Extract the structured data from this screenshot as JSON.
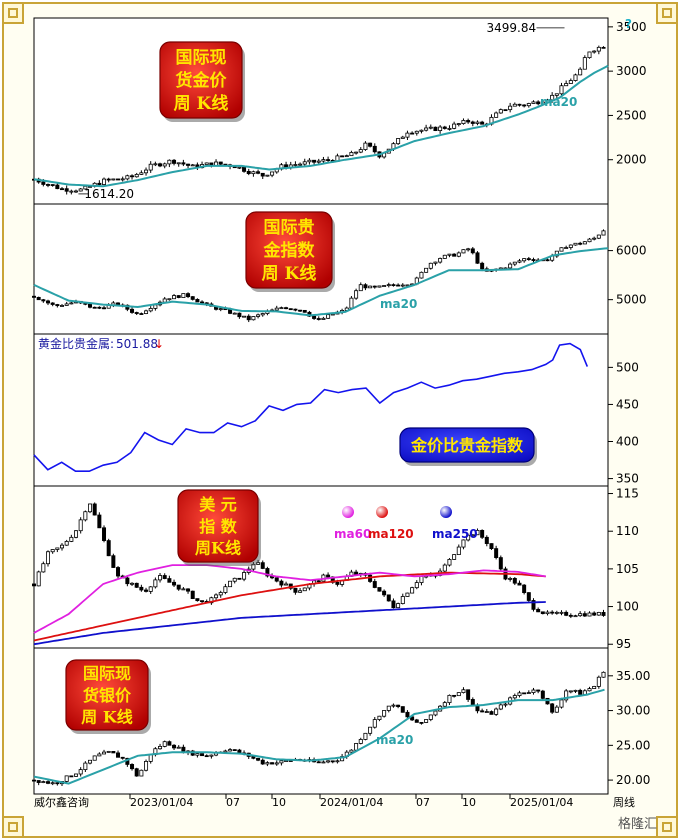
{
  "footer": {
    "source": "威尔鑫咨询",
    "period": "周线",
    "watermark": "格隆汇"
  },
  "x_axis": {
    "ticks": [
      "2023/01/04",
      "07",
      "10",
      "2024/01/04",
      "07",
      "10",
      "2025/01/04"
    ]
  },
  "colors": {
    "candle": "#000000",
    "ma20": "#2aa1a8",
    "ma60": "#e020e0",
    "ma120": "#dd1010",
    "ma250": "#1010cc",
    "ratio_line": "#1414ee",
    "badge_red": "#e01010",
    "badge_blue": "#1414ee",
    "badge_text": "#ffe600"
  },
  "chart_data": [
    {
      "id": "gold",
      "type": "candlestick",
      "badge": [
        "国际现",
        "货金价",
        "周  K线"
      ],
      "ylim": [
        1500,
        3600
      ],
      "yticks": [
        "3500",
        "3000",
        "2500",
        "2000"
      ],
      "high_annotation": "3499.84",
      "low_annotation": "1614.20",
      "ma_label": "ma20",
      "close_path": [
        [
          0,
          1780
        ],
        [
          8,
          1670
        ],
        [
          14,
          1660
        ],
        [
          20,
          1760
        ],
        [
          28,
          1800
        ],
        [
          34,
          1930
        ],
        [
          40,
          1990
        ],
        [
          46,
          1920
        ],
        [
          52,
          1960
        ],
        [
          58,
          1930
        ],
        [
          62,
          1870
        ],
        [
          66,
          1820
        ],
        [
          72,
          1930
        ],
        [
          80,
          1970
        ],
        [
          86,
          2000
        ],
        [
          92,
          2060
        ],
        [
          96,
          2170
        ],
        [
          100,
          2050
        ],
        [
          104,
          2170
        ],
        [
          108,
          2320
        ],
        [
          114,
          2340
        ],
        [
          120,
          2370
        ],
        [
          126,
          2440
        ],
        [
          130,
          2390
        ],
        [
          134,
          2520
        ],
        [
          138,
          2620
        ],
        [
          142,
          2620
        ],
        [
          146,
          2660
        ],
        [
          150,
          2720
        ],
        [
          154,
          2860
        ],
        [
          158,
          3000
        ],
        [
          160,
          3220
        ],
        [
          162,
          3250
        ],
        [
          166,
          3300
        ]
      ],
      "ma20_path": [
        [
          0,
          1780
        ],
        [
          10,
          1720
        ],
        [
          20,
          1700
        ],
        [
          30,
          1770
        ],
        [
          40,
          1860
        ],
        [
          50,
          1930
        ],
        [
          60,
          1930
        ],
        [
          68,
          1890
        ],
        [
          80,
          1930
        ],
        [
          90,
          2000
        ],
        [
          100,
          2060
        ],
        [
          110,
          2210
        ],
        [
          120,
          2300
        ],
        [
          130,
          2380
        ],
        [
          140,
          2510
        ],
        [
          146,
          2600
        ],
        [
          152,
          2700
        ],
        [
          158,
          2880
        ],
        [
          162,
          2980
        ],
        [
          166,
          3060
        ]
      ]
    },
    {
      "id": "precious",
      "type": "candlestick",
      "badge": [
        "国际贵",
        "金指数",
        "周  K线"
      ],
      "ylim": [
        4300,
        6950
      ],
      "yticks": [
        "6000",
        "5000"
      ],
      "ma_label": "ma20",
      "close_path": [
        [
          0,
          5070
        ],
        [
          6,
          4870
        ],
        [
          12,
          4950
        ],
        [
          18,
          4820
        ],
        [
          24,
          4920
        ],
        [
          30,
          4700
        ],
        [
          38,
          5030
        ],
        [
          44,
          5100
        ],
        [
          50,
          4880
        ],
        [
          56,
          4760
        ],
        [
          62,
          4600
        ],
        [
          66,
          4710
        ],
        [
          72,
          4850
        ],
        [
          78,
          4780
        ],
        [
          82,
          4560
        ],
        [
          86,
          4700
        ],
        [
          90,
          4780
        ],
        [
          94,
          5300
        ],
        [
          98,
          5230
        ],
        [
          104,
          5300
        ],
        [
          110,
          5350
        ],
        [
          114,
          5720
        ],
        [
          118,
          5870
        ],
        [
          122,
          5920
        ],
        [
          126,
          6050
        ],
        [
          130,
          5550
        ],
        [
          136,
          5660
        ],
        [
          142,
          5840
        ],
        [
          148,
          5800
        ],
        [
          154,
          6100
        ],
        [
          158,
          6150
        ],
        [
          162,
          6250
        ],
        [
          166,
          6500
        ]
      ],
      "ma20_path": [
        [
          0,
          5300
        ],
        [
          10,
          4980
        ],
        [
          20,
          4900
        ],
        [
          30,
          4850
        ],
        [
          40,
          4960
        ],
        [
          50,
          4900
        ],
        [
          60,
          4770
        ],
        [
          70,
          4760
        ],
        [
          80,
          4680
        ],
        [
          90,
          4750
        ],
        [
          100,
          5080
        ],
        [
          110,
          5300
        ],
        [
          120,
          5600
        ],
        [
          130,
          5600
        ],
        [
          140,
          5620
        ],
        [
          150,
          5900
        ],
        [
          158,
          5990
        ],
        [
          166,
          6050
        ]
      ]
    },
    {
      "id": "ratio",
      "type": "line",
      "legend_label": "黄金比贵金属:",
      "current_value": "501.88",
      "arrow": "↓",
      "badge": [
        "金价比贵金指数"
      ],
      "ylim": [
        340,
        545
      ],
      "yticks": [
        "500",
        "450",
        "400",
        "350"
      ],
      "points": [
        [
          0,
          382
        ],
        [
          4,
          362
        ],
        [
          8,
          372
        ],
        [
          12,
          360
        ],
        [
          16,
          360
        ],
        [
          20,
          368
        ],
        [
          24,
          372
        ],
        [
          28,
          385
        ],
        [
          32,
          412
        ],
        [
          36,
          402
        ],
        [
          40,
          396
        ],
        [
          44,
          417
        ],
        [
          48,
          412
        ],
        [
          52,
          412
        ],
        [
          56,
          425
        ],
        [
          60,
          420
        ],
        [
          64,
          428
        ],
        [
          68,
          448
        ],
        [
          72,
          442
        ],
        [
          76,
          450
        ],
        [
          80,
          452
        ],
        [
          84,
          470
        ],
        [
          88,
          466
        ],
        [
          92,
          470
        ],
        [
          96,
          472
        ],
        [
          100,
          452
        ],
        [
          104,
          466
        ],
        [
          108,
          472
        ],
        [
          112,
          480
        ],
        [
          116,
          472
        ],
        [
          120,
          476
        ],
        [
          124,
          482
        ],
        [
          128,
          484
        ],
        [
          132,
          488
        ],
        [
          136,
          492
        ],
        [
          140,
          494
        ],
        [
          144,
          497
        ],
        [
          148,
          504
        ],
        [
          150,
          510
        ],
        [
          152,
          530
        ],
        [
          155,
          532
        ],
        [
          158,
          524
        ],
        [
          160,
          501
        ]
      ]
    },
    {
      "id": "usd",
      "type": "candlestick",
      "badge": [
        "美    元",
        "指  数",
        "周K线"
      ],
      "ylim": [
        94.5,
        116
      ],
      "yticks": [
        "115",
        "110",
        "105",
        "100",
        "95"
      ],
      "ma_labels": [
        "ma60",
        "ma120",
        "ma250"
      ],
      "close_path": [
        [
          0,
          103
        ],
        [
          4,
          107
        ],
        [
          8,
          108
        ],
        [
          12,
          110
        ],
        [
          16,
          114
        ],
        [
          20,
          109
        ],
        [
          24,
          104
        ],
        [
          28,
          103
        ],
        [
          32,
          102
        ],
        [
          36,
          104
        ],
        [
          40,
          103
        ],
        [
          44,
          102
        ],
        [
          48,
          100.5
        ],
        [
          52,
          101
        ],
        [
          56,
          103
        ],
        [
          60,
          104
        ],
        [
          64,
          106
        ],
        [
          68,
          104
        ],
        [
          72,
          103
        ],
        [
          76,
          102
        ],
        [
          80,
          103
        ],
        [
          84,
          104
        ],
        [
          88,
          103
        ],
        [
          92,
          104.5
        ],
        [
          96,
          104
        ],
        [
          100,
          102
        ],
        [
          104,
          100
        ],
        [
          108,
          102
        ],
        [
          112,
          104
        ],
        [
          116,
          104
        ],
        [
          120,
          106
        ],
        [
          124,
          109
        ],
        [
          128,
          110
        ],
        [
          132,
          108
        ],
        [
          136,
          104
        ],
        [
          140,
          103
        ],
        [
          144,
          100
        ],
        [
          148,
          99
        ]
      ],
      "ma60_path": [
        [
          0,
          96.5
        ],
        [
          10,
          99
        ],
        [
          20,
          103
        ],
        [
          30,
          104.5
        ],
        [
          40,
          105.5
        ],
        [
          50,
          105.5
        ],
        [
          60,
          105
        ],
        [
          70,
          104
        ],
        [
          80,
          103.5
        ],
        [
          90,
          104
        ],
        [
          100,
          104.5
        ],
        [
          110,
          104
        ],
        [
          120,
          104.3
        ],
        [
          130,
          104.8
        ],
        [
          140,
          104.6
        ],
        [
          148,
          104
        ]
      ],
      "ma120_path": [
        [
          0,
          95.5
        ],
        [
          20,
          97.5
        ],
        [
          40,
          99.5
        ],
        [
          60,
          101.5
        ],
        [
          80,
          103
        ],
        [
          100,
          104
        ],
        [
          120,
          104.5
        ],
        [
          140,
          104.3
        ],
        [
          148,
          104
        ]
      ],
      "ma250_path": [
        [
          0,
          95
        ],
        [
          20,
          96.5
        ],
        [
          40,
          97.5
        ],
        [
          60,
          98.5
        ],
        [
          80,
          99
        ],
        [
          100,
          99.5
        ],
        [
          120,
          100
        ],
        [
          140,
          100.5
        ],
        [
          148,
          100.6
        ]
      ]
    },
    {
      "id": "silver",
      "type": "candlestick",
      "badge": [
        "国际现",
        "货银价",
        "周  K线"
      ],
      "ylim": [
        18,
        39
      ],
      "yticks": [
        "35.00",
        "30.00",
        "25.00",
        "20.00"
      ],
      "ma_label": "ma20",
      "close_path": [
        [
          0,
          20
        ],
        [
          6,
          19.5
        ],
        [
          12,
          21
        ],
        [
          18,
          23.5
        ],
        [
          22,
          24
        ],
        [
          26,
          23
        ],
        [
          30,
          20.5
        ],
        [
          34,
          24
        ],
        [
          38,
          25.5
        ],
        [
          44,
          24
        ],
        [
          50,
          23.5
        ],
        [
          56,
          24.5
        ],
        [
          62,
          23.5
        ],
        [
          66,
          22.5
        ],
        [
          70,
          22.5
        ],
        [
          76,
          23
        ],
        [
          82,
          22.5
        ],
        [
          88,
          23
        ],
        [
          92,
          24.5
        ],
        [
          96,
          27
        ],
        [
          100,
          29.5
        ],
        [
          104,
          31
        ],
        [
          108,
          29
        ],
        [
          112,
          28
        ],
        [
          116,
          30
        ],
        [
          120,
          32
        ],
        [
          124,
          33
        ],
        [
          128,
          30
        ],
        [
          132,
          29.5
        ],
        [
          136,
          31
        ],
        [
          140,
          32.5
        ],
        [
          146,
          33
        ],
        [
          150,
          29.5
        ],
        [
          154,
          33
        ],
        [
          158,
          32.5
        ],
        [
          162,
          33.5
        ],
        [
          165,
          36
        ]
      ],
      "ma20_path": [
        [
          0,
          20.5
        ],
        [
          10,
          19.5
        ],
        [
          20,
          21.5
        ],
        [
          30,
          23.5
        ],
        [
          40,
          24
        ],
        [
          50,
          24
        ],
        [
          60,
          23.8
        ],
        [
          70,
          23
        ],
        [
          80,
          22.8
        ],
        [
          90,
          23.3
        ],
        [
          100,
          26
        ],
        [
          110,
          29.5
        ],
        [
          120,
          30.5
        ],
        [
          130,
          30.8
        ],
        [
          140,
          31.5
        ],
        [
          150,
          31.5
        ],
        [
          160,
          32.3
        ],
        [
          165,
          33
        ]
      ]
    }
  ]
}
